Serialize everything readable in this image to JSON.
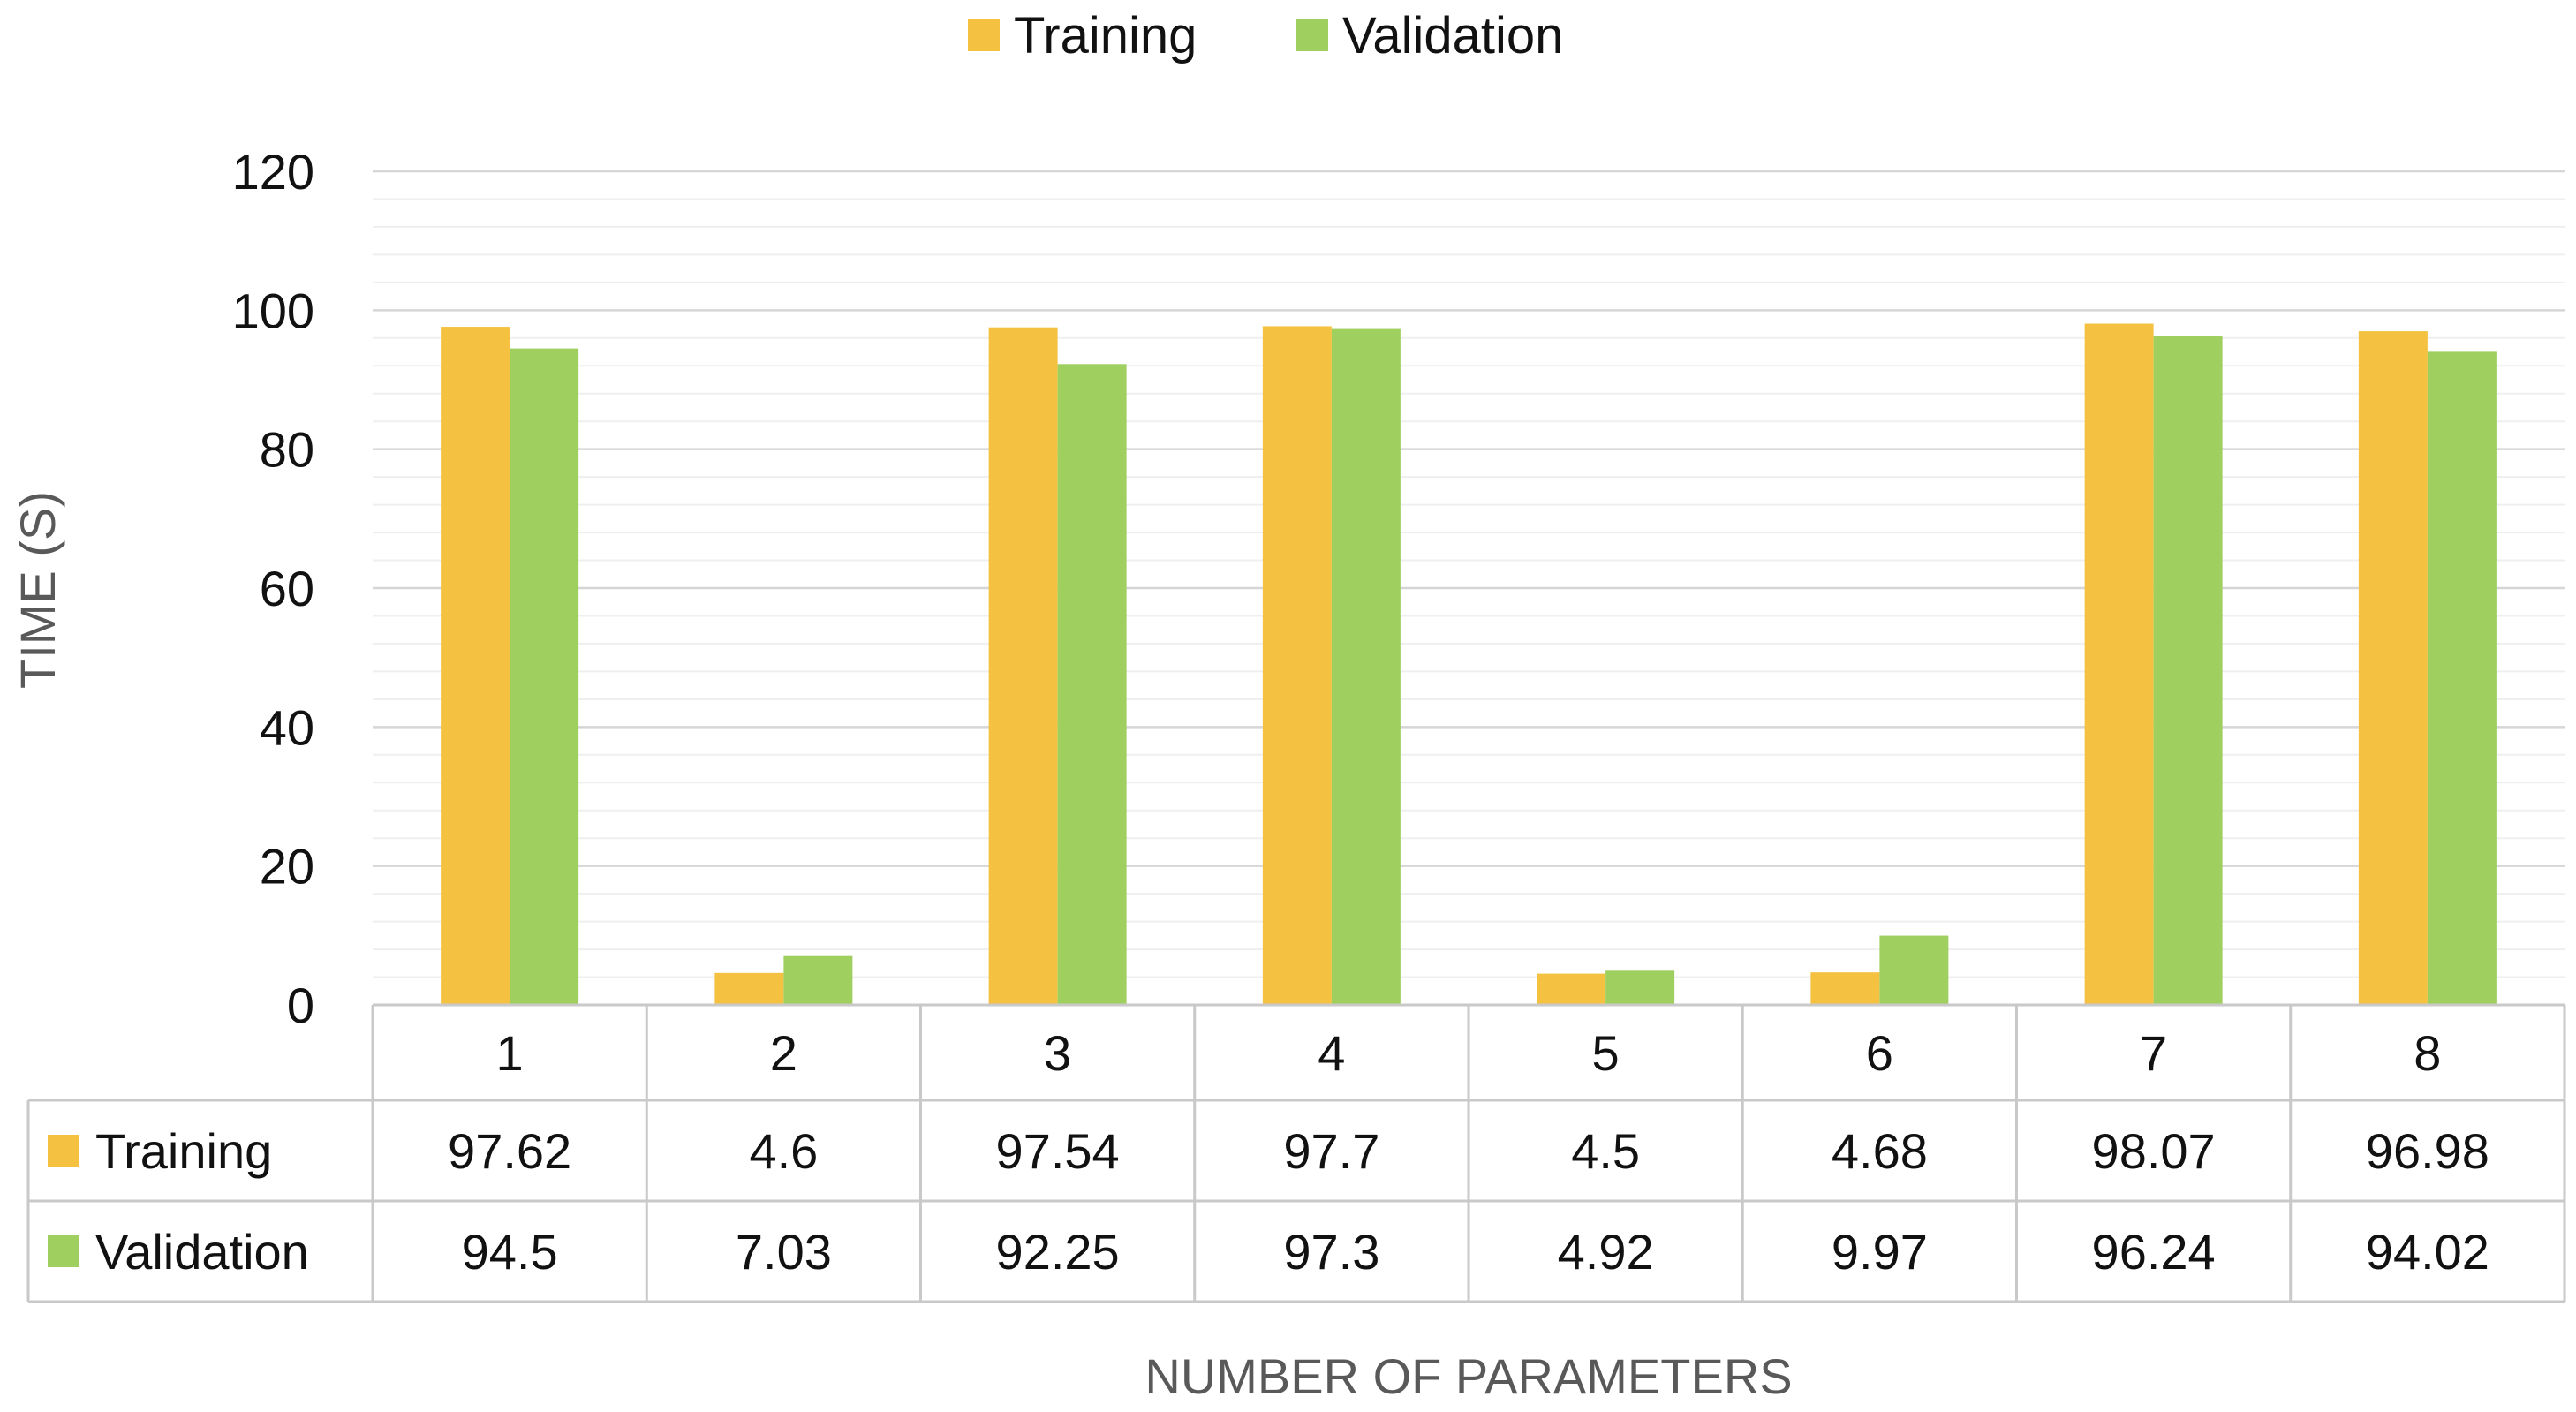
{
  "chart_data": {
    "type": "bar",
    "title": "",
    "xlabel": "NUMBER OF PARAMETERS",
    "ylabel": "TIME (S)",
    "ylim": [
      0,
      120
    ],
    "y_ticks": [
      "0",
      "20",
      "40",
      "60",
      "80",
      "100",
      "120"
    ],
    "y_tick_values": [
      0,
      20,
      40,
      60,
      80,
      100,
      120
    ],
    "minor_grid_step": 4,
    "categories": [
      "1",
      "2",
      "3",
      "4",
      "5",
      "6",
      "7",
      "8"
    ],
    "series": [
      {
        "name": "Training",
        "color": "#F4C141",
        "values": [
          97.62,
          4.6,
          97.54,
          97.7,
          4.5,
          4.68,
          98.07,
          96.98
        ],
        "labels": [
          "97.62",
          "4.6",
          "97.54",
          "97.7",
          "4.5",
          "4.68",
          "98.07",
          "96.98"
        ]
      },
      {
        "name": "Validation",
        "color": "#9FCF5F",
        "values": [
          94.5,
          7.03,
          92.25,
          97.3,
          4.92,
          9.97,
          96.24,
          94.02
        ],
        "labels": [
          "94.5",
          "7.03",
          "92.25",
          "97.3",
          "4.92",
          "9.97",
          "96.24",
          "94.02"
        ]
      }
    ],
    "legend_position": "top-center",
    "data_table": true,
    "grid": true
  }
}
